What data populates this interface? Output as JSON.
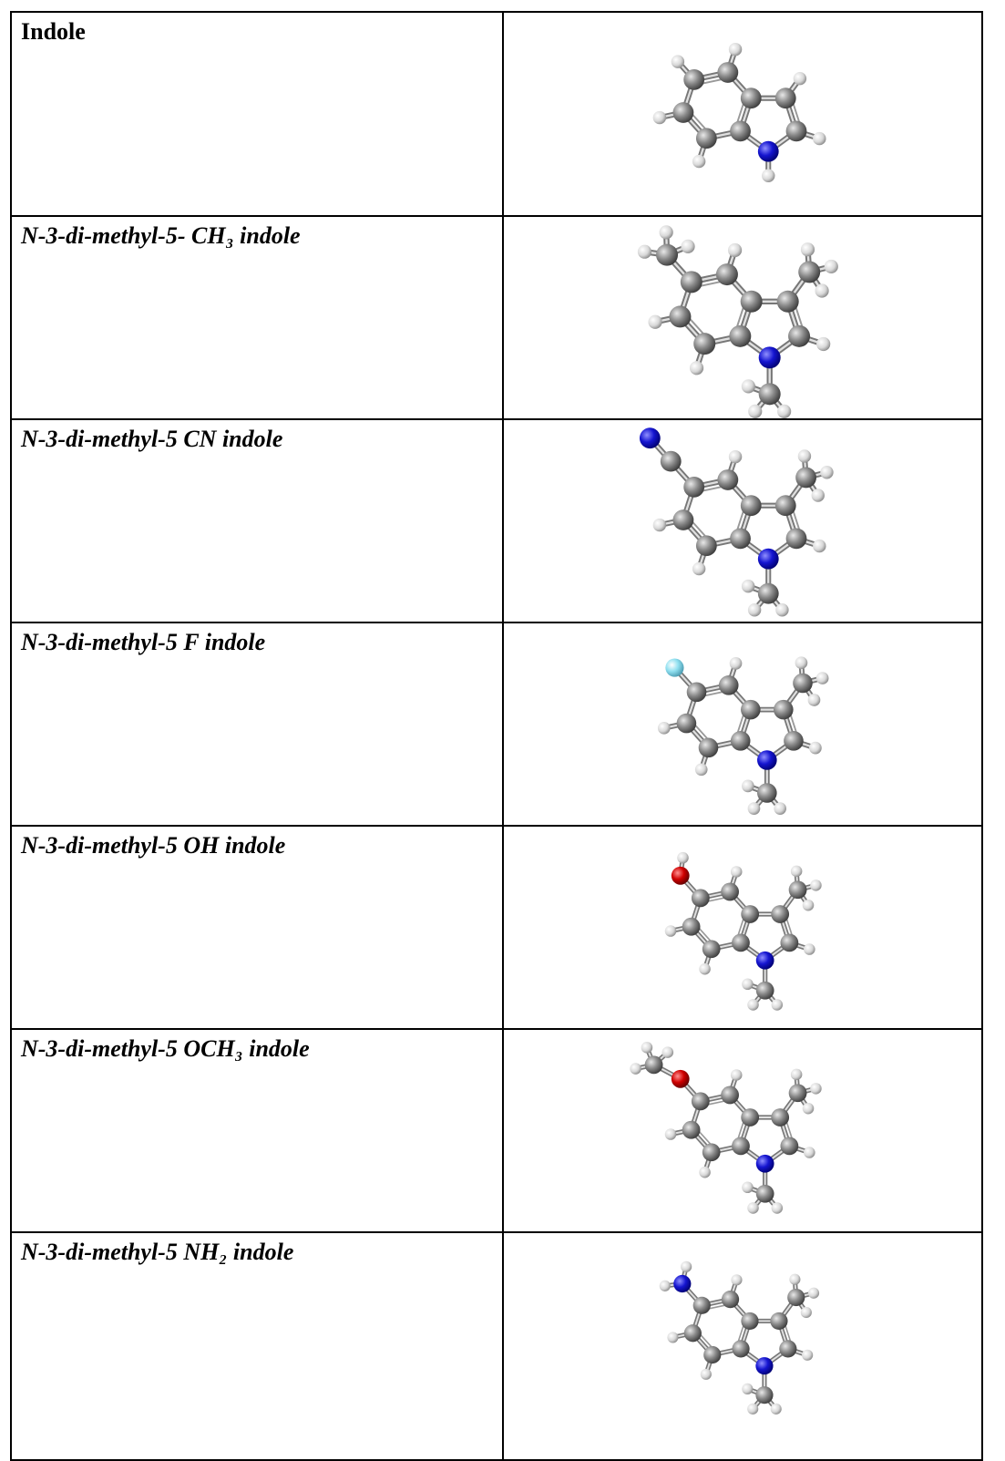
{
  "table": {
    "rows": [
      {
        "name": "Indole"
      },
      {
        "name": "N-3-di-methyl-5- CH₃ indole"
      },
      {
        "name": "N-3-di-methyl-5 CN indole"
      },
      {
        "name": "N-3-di-methyl-5 F indole"
      },
      {
        "name": "N-3-di-methyl-5 OH indole"
      },
      {
        "name": "N-3-di-methyl-5 OCH₃ indole"
      },
      {
        "name": "N-3-di-methyl-5 NH₂ indole"
      }
    ]
  }
}
